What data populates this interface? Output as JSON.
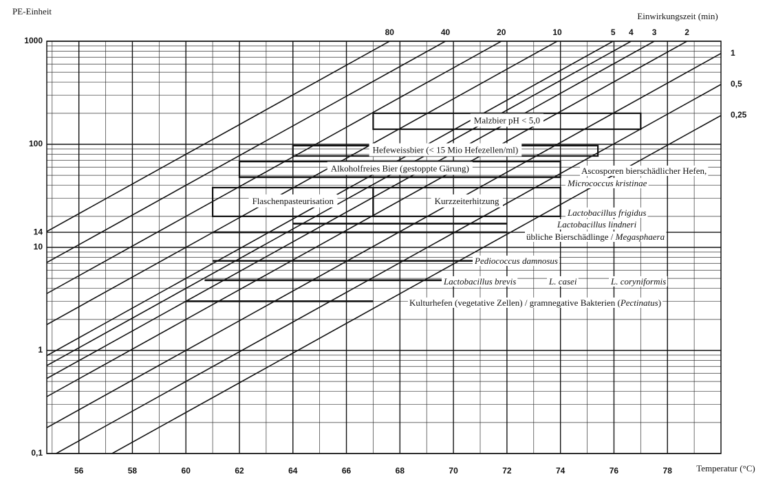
{
  "chart_data": {
    "type": "pasteurization",
    "y_title": "PE-Einheit",
    "x_title": "Temperatur (°C)",
    "time_title": "Einwirkungszeit (min)",
    "log_y": true,
    "grid": true,
    "xlim": [
      54.8,
      80
    ],
    "ylim": [
      0.1,
      1000
    ],
    "xticks": [
      56,
      58,
      60,
      62,
      64,
      66,
      68,
      70,
      72,
      74,
      76,
      78
    ],
    "yticks": [
      {
        "value": 0.1,
        "label": "0,1"
      },
      1,
      10,
      14,
      100,
      1000
    ],
    "reference_temperature": 60,
    "z_value": 6.94,
    "times": [
      80,
      40,
      20,
      10,
      5,
      4,
      3,
      2,
      1,
      {
        "value": 0.5,
        "label": "0,5"
      },
      {
        "value": 0.25,
        "label": "0,25"
      }
    ],
    "boxes": [
      {
        "label": "Malzbier pH < 5,0",
        "pe": [
          140,
          200
        ],
        "t": [
          67,
          77
        ]
      },
      {
        "label": "Hefeweissbier (< 15 Mio Hefezellen/ml)",
        "pe": [
          77,
          97
        ],
        "t": [
          64,
          75.4
        ]
      },
      {
        "label": "Alkoholfreies Bier (gestoppte Gärung)",
        "pe": [
          48,
          68
        ],
        "t": [
          62,
          74
        ]
      },
      {
        "label": "Flaschenpasteurisation",
        "pe": [
          20,
          38
        ],
        "t": [
          61,
          67
        ]
      },
      {
        "label": "Kurzzeiterhitzung",
        "pe": [
          20,
          38
        ],
        "t": [
          67,
          74
        ]
      }
    ],
    "organisms": [
      {
        "pe": 48,
        "t": [
          62,
          74
        ],
        "lines": [
          [
            {
              "text": "Ascosporen bierschädlicher Hefen,"
            }
          ],
          [
            {
              "text": "Micrococcus kristinae",
              "italic": true
            }
          ]
        ]
      },
      {
        "pe": 17,
        "t": [
          64,
          72
        ],
        "lines": [
          [
            {
              "text": "Lactobacillus frigidus",
              "italic": true
            }
          ],
          [
            {
              "text": "Lactobacillus lindneri",
              "italic": true
            }
          ]
        ]
      },
      {
        "pe": 14,
        "t": [
          61,
          72
        ],
        "lines": [
          [
            {
              "text": "übliche Bierschädlinge / "
            },
            {
              "text": "Megasphaera",
              "italic": true
            }
          ]
        ]
      },
      {
        "pe": 7.4,
        "t": [
          61,
          71
        ],
        "lines": [
          [
            {
              "text": "Pediococcus damnosus",
              "italic": true
            }
          ]
        ]
      },
      {
        "pe": 4.8,
        "t": [
          60.7,
          70
        ],
        "lines": [
          [
            {
              "text": "Lactobacillus brevis",
              "italic": true
            }
          ],
          [
            {
              "text": "L. casei",
              "italic": true
            }
          ],
          [
            {
              "text": "L. coryniformis",
              "italic": true
            }
          ]
        ]
      },
      {
        "pe": 3,
        "t": [
          60,
          67
        ],
        "lines": [
          [
            {
              "text": "Kulturhefen (vegetative Zellen) / gramnegative Bakterien ("
            },
            {
              "text": "Pectinatus",
              "italic": true
            },
            {
              "text": ")"
            }
          ]
        ]
      }
    ]
  }
}
